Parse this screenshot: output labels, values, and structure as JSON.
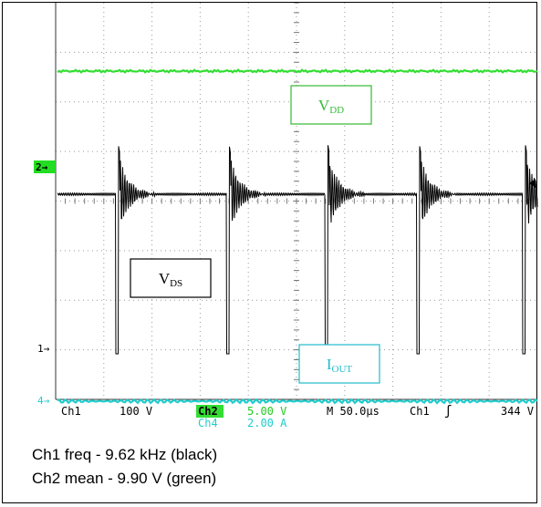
{
  "chart_data": {
    "type": "line",
    "instrument": "oscilloscope",
    "grid": true,
    "x_divisions": 10,
    "y_divisions": 8,
    "channel_markers": [
      {
        "label": "2",
        "color": "#22dd22",
        "style": "box"
      },
      {
        "label": "1",
        "color": "#000000",
        "style": "text"
      },
      {
        "label": "4",
        "color": "#22cccc",
        "style": "text"
      }
    ],
    "series": [
      {
        "name": "Ch1",
        "color": "#000000",
        "scale": "100 V",
        "role": "V_DS switching waveform with ringing"
      },
      {
        "name": "Ch2",
        "color": "#33dd33",
        "scale": "5.00 V",
        "role": "V_DD supply"
      },
      {
        "name": "Ch4",
        "color": "#22cccc",
        "scale": "2.00 A",
        "role": "I_OUT"
      }
    ],
    "pulse_times_div": [
      1.3,
      3.6,
      5.65,
      7.55,
      9.75
    ],
    "annotations": [
      {
        "main": "V",
        "sub": "DD",
        "color": "#33bb33"
      },
      {
        "main": "V",
        "sub": "DS",
        "color": "#000000"
      },
      {
        "main": "I",
        "sub": "OUT",
        "color": "#22bbcc"
      }
    ],
    "readout": {
      "ch1_label": "Ch1",
      "ch1_scale": "100 V",
      "ch2_label": "Ch2",
      "ch2_scale": "5.00 V",
      "ch4_label": "Ch4",
      "ch4_scale": "2.00 A",
      "timebase": "M 50.0µs",
      "trigger_source": "Ch1",
      "trigger_symbol": "ʃ",
      "trigger_level": "344 V"
    }
  },
  "captions": [
    "Ch1 freq - 9.62 kHz (black)",
    "Ch2 mean - 9.90 V (green)"
  ]
}
